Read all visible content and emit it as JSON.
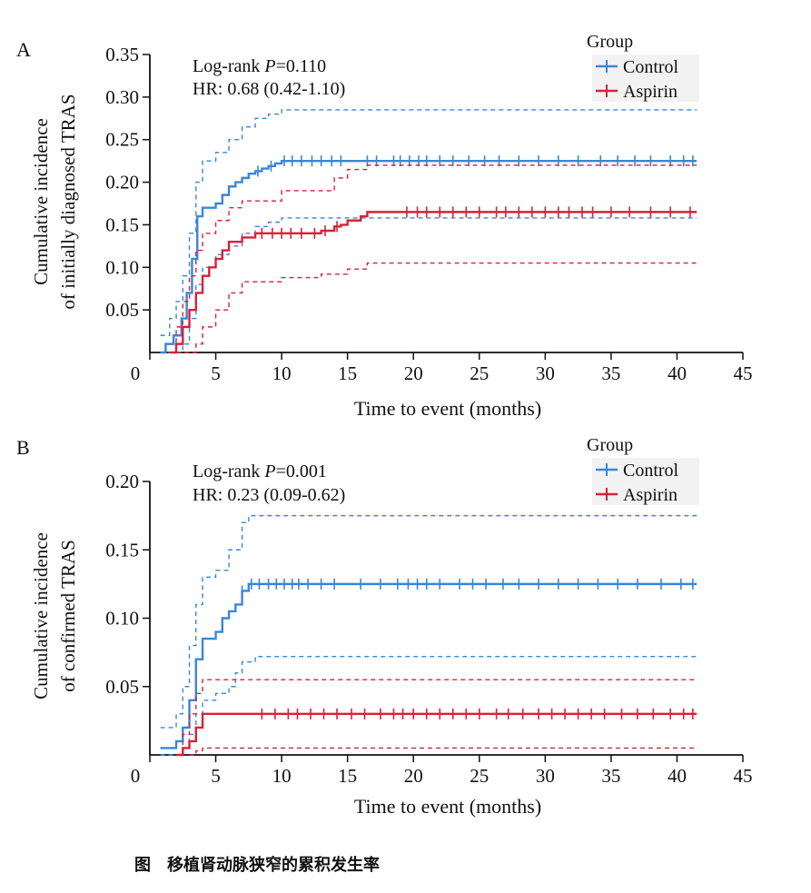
{
  "caption": "图　移植肾动脉狭窄的累积发生率",
  "colors": {
    "control": "#3a86d8",
    "aspirin": "#d6223a",
    "axis": "#111111"
  },
  "chart_data": [
    {
      "panel_label": "A",
      "type": "line",
      "title": "",
      "xlabel": "Time to event (months)",
      "ylabel_line1": "Cumulative incidence",
      "ylabel_line2": "of initially diagnosed TRAS",
      "xlim": [
        0,
        45
      ],
      "ylim": [
        0,
        0.35
      ],
      "xticks": [
        "0",
        "5",
        "10",
        "15",
        "20",
        "25",
        "30",
        "35",
        "40",
        "45"
      ],
      "yticks": [
        "0.05",
        "0.10",
        "0.15",
        "0.20",
        "0.25",
        "0.30",
        "0.35"
      ],
      "ytick_values": [
        0.05,
        0.1,
        0.15,
        0.2,
        0.25,
        0.3,
        0.35
      ],
      "annotation_prefix": "Log-rank ",
      "annotation_p": "P",
      "annotation_pvalue": "=0.110",
      "annotation_hr": "HR: 0.68 (0.42-1.10)",
      "legend_title": "Group",
      "series": [
        {
          "name": "Control",
          "key": "control",
          "x": [
            0.8,
            1.2,
            1.8,
            2.4,
            2.8,
            3.2,
            3.6,
            4.0,
            5.0,
            5.5,
            6.0,
            6.5,
            7.0,
            7.5,
            8.0,
            8.5,
            9.0,
            9.5,
            10.0,
            41.5
          ],
          "y": [
            0.0,
            0.01,
            0.02,
            0.04,
            0.07,
            0.11,
            0.16,
            0.17,
            0.175,
            0.185,
            0.195,
            0.2,
            0.205,
            0.21,
            0.213,
            0.216,
            0.219,
            0.222,
            0.225,
            0.225
          ],
          "upper_ci": {
            "x": [
              0.8,
              1.5,
              2.0,
              2.5,
              3.0,
              3.5,
              4.0,
              5.0,
              6.0,
              7.0,
              8.0,
              9.0,
              10.0,
              41.5
            ],
            "y": [
              0.02,
              0.04,
              0.06,
              0.09,
              0.14,
              0.2,
              0.225,
              0.235,
              0.25,
              0.265,
              0.275,
              0.28,
              0.285,
              0.285
            ]
          },
          "lower_ci": {
            "x": [
              0.8,
              2.0,
              2.5,
              3.0,
              3.5,
              4.0,
              5.0,
              6.0,
              7.0,
              8.0,
              9.0,
              10.0,
              20.0,
              41.5
            ],
            "y": [
              0.0,
              0.0,
              0.01,
              0.04,
              0.08,
              0.1,
              0.115,
              0.125,
              0.14,
              0.148,
              0.153,
              0.158,
              0.158,
              0.158
            ]
          },
          "censor_x": [
            8.2,
            9.2,
            10.2,
            10.8,
            11.5,
            12.3,
            13.0,
            13.8,
            14.5,
            16.5,
            17.2,
            18.5,
            19.0,
            19.7,
            20.4,
            21.0,
            22.0,
            23.0,
            24.2,
            25.4,
            26.5,
            28.0,
            29.5,
            31.0,
            32.5,
            34.2,
            35.5,
            36.8,
            38.0,
            39.5,
            40.5,
            41.2
          ]
        },
        {
          "name": "Aspirin",
          "key": "aspirin",
          "x": [
            1.5,
            2.0,
            2.5,
            3.0,
            3.5,
            4.0,
            4.5,
            5.0,
            5.5,
            6.0,
            7.0,
            7.5,
            8.0,
            9.0,
            10.0,
            12.0,
            13.0,
            14.0,
            14.5,
            15.0,
            16.0,
            16.5,
            41.5
          ],
          "y": [
            0.0,
            0.01,
            0.03,
            0.05,
            0.07,
            0.09,
            0.1,
            0.11,
            0.12,
            0.13,
            0.135,
            0.135,
            0.14,
            0.14,
            0.14,
            0.14,
            0.143,
            0.148,
            0.15,
            0.155,
            0.16,
            0.165,
            0.165
          ],
          "upper_ci": {
            "x": [
              1.5,
              2.0,
              2.5,
              3.0,
              3.5,
              4.0,
              5.0,
              6.0,
              7.0,
              10.0,
              13.0,
              14.0,
              15.0,
              16.5,
              20.0,
              41.5
            ],
            "y": [
              0.0,
              0.03,
              0.06,
              0.09,
              0.12,
              0.14,
              0.155,
              0.17,
              0.178,
              0.19,
              0.19,
              0.205,
              0.215,
              0.22,
              0.22,
              0.22
            ]
          },
          "lower_ci": {
            "x": [
              2.0,
              3.0,
              3.5,
              4.0,
              5.0,
              6.0,
              7.0,
              10.0,
              13.0,
              15.0,
              16.5,
              41.5
            ],
            "y": [
              0.0,
              0.0,
              0.01,
              0.03,
              0.05,
              0.07,
              0.083,
              0.088,
              0.092,
              0.098,
              0.105,
              0.105
            ]
          },
          "censor_x": [
            8.5,
            9.3,
            10.0,
            10.7,
            11.5,
            12.5,
            13.3,
            14.2,
            19.5,
            20.3,
            21.0,
            22.0,
            23.0,
            24.0,
            25.0,
            26.3,
            27.0,
            28.0,
            29.0,
            30.0,
            31.0,
            31.8,
            32.8,
            33.6,
            35.0,
            36.4,
            38.0,
            39.5,
            41.0
          ]
        }
      ]
    },
    {
      "panel_label": "B",
      "type": "line",
      "title": "",
      "xlabel": "Time to event (months)",
      "ylabel_line1": "Cumulative incidence",
      "ylabel_line2": "of confirmed TRAS",
      "xlim": [
        0,
        45
      ],
      "ylim": [
        0,
        0.2
      ],
      "xticks": [
        "0",
        "5",
        "10",
        "15",
        "20",
        "25",
        "30",
        "35",
        "40",
        "45"
      ],
      "yticks": [
        "0.05",
        "0.10",
        "0.15",
        "0.20"
      ],
      "ytick_values": [
        0.05,
        0.1,
        0.15,
        0.2
      ],
      "annotation_prefix": "Log-rank ",
      "annotation_p": "P",
      "annotation_pvalue": "=0.001",
      "annotation_hr": "HR: 0.23 (0.09-0.62)",
      "legend_title": "Group",
      "series": [
        {
          "name": "Control",
          "key": "control",
          "x": [
            0.8,
            1.5,
            2.0,
            2.5,
            3.0,
            3.5,
            4.0,
            5.0,
            5.5,
            6.0,
            6.5,
            7.0,
            7.5,
            41.5
          ],
          "y": [
            0.005,
            0.005,
            0.01,
            0.02,
            0.04,
            0.07,
            0.085,
            0.09,
            0.1,
            0.105,
            0.11,
            0.12,
            0.125,
            0.125
          ],
          "upper_ci": {
            "x": [
              0.8,
              1.5,
              2.0,
              2.5,
              3.0,
              3.5,
              4.0,
              5.0,
              6.0,
              7.0,
              7.5,
              41.5
            ],
            "y": [
              0.02,
              0.02,
              0.03,
              0.05,
              0.08,
              0.11,
              0.13,
              0.135,
              0.15,
              0.17,
              0.175,
              0.175
            ]
          },
          "lower_ci": {
            "x": [
              0.8,
              2.0,
              2.5,
              3.0,
              3.5,
              4.0,
              5.0,
              6.0,
              6.5,
              7.0,
              8.0,
              41.5
            ],
            "y": [
              0.0,
              0.0,
              0.005,
              0.015,
              0.03,
              0.04,
              0.045,
              0.05,
              0.06,
              0.068,
              0.072,
              0.072
            ]
          },
          "censor_x": [
            7.0,
            7.7,
            8.3,
            9.0,
            9.6,
            10.2,
            10.8,
            11.3,
            12.0,
            13.0,
            14.0,
            16.0,
            17.5,
            18.8,
            19.6,
            20.3,
            21.0,
            22.0,
            23.5,
            24.5,
            25.5,
            26.8,
            28.0,
            29.5,
            31.0,
            32.5,
            34.0,
            35.5,
            37.0,
            38.8,
            40.3,
            41.2
          ]
        },
        {
          "name": "Aspirin",
          "key": "aspirin",
          "x": [
            2.0,
            2.5,
            3.0,
            3.5,
            4.0,
            41.5
          ],
          "y": [
            0.0,
            0.005,
            0.01,
            0.02,
            0.03,
            0.03
          ],
          "upper_ci": {
            "x": [
              2.0,
              2.5,
              3.0,
              3.5,
              4.0,
              41.5
            ],
            "y": [
              0.0,
              0.015,
              0.03,
              0.045,
              0.055,
              0.055
            ]
          },
          "lower_ci": {
            "x": [
              3.0,
              3.5,
              4.0,
              41.5
            ],
            "y": [
              0.0,
              0.003,
              0.005,
              0.005
            ]
          },
          "censor_x": [
            8.5,
            9.5,
            10.5,
            11.2,
            12.2,
            13.2,
            14.2,
            15.3,
            16.3,
            17.5,
            18.5,
            19.2,
            20.0,
            21.0,
            22.0,
            23.0,
            24.0,
            25.0,
            26.3,
            27.2,
            28.3,
            29.5,
            30.5,
            31.5,
            32.5,
            33.5,
            34.5,
            35.8,
            37.0,
            38.2,
            39.5,
            40.5,
            41.2
          ]
        }
      ]
    }
  ]
}
